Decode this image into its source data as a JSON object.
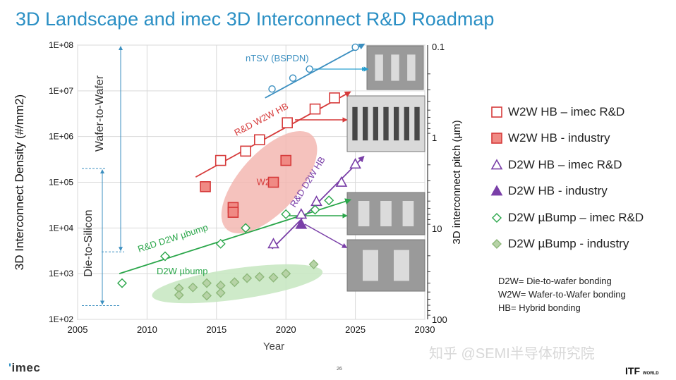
{
  "slide": {
    "title": "3D Landscape and imec 3D Interconnect R&D Roadmap",
    "footer_logo": "imec",
    "page_number": "26",
    "watermark": "知乎 @SEMI半导体研究院",
    "footer_right": "ITF",
    "footer_right_sub": "WORLD"
  },
  "chart_data": {
    "type": "scatter",
    "xlabel": "Year",
    "ylabel": "3D Interconnect Density (#/mm2)",
    "y2label": "3D interconnect pitch (µm)",
    "xlim": [
      2005,
      2030
    ],
    "ylim": [
      100,
      100000000
    ],
    "yscale": "log",
    "x_ticks": [
      "2005",
      "2010",
      "2015",
      "2020",
      "2025",
      "2030"
    ],
    "y_ticks": [
      "1E+02",
      "1E+03",
      "1E+04",
      "1E+05",
      "1E+06",
      "1E+07",
      "1E+08"
    ],
    "y2_ticks": [
      "0.1",
      "1",
      "10",
      "100"
    ],
    "series": [
      {
        "name": "W2W HB – imec R&D",
        "marker": "square-open",
        "color": "#d63a3a",
        "points": [
          [
            2015.3,
            300000
          ],
          [
            2017.1,
            480000
          ],
          [
            2018.1,
            850000
          ],
          [
            2020.1,
            2000000
          ],
          [
            2022.1,
            4000000
          ],
          [
            2023.5,
            7000000
          ]
        ]
      },
      {
        "name": "W2W HB - industry",
        "marker": "square-filled",
        "color": "#d63a3a",
        "points": [
          [
            2014.2,
            80000
          ],
          [
            2016.2,
            28000
          ],
          [
            2016.2,
            22000
          ],
          [
            2019.1,
            100000
          ],
          [
            2020.0,
            300000
          ]
        ]
      },
      {
        "name": "D2W HB – imec R&D",
        "marker": "triangle-open",
        "color": "#7a3fa8",
        "points": [
          [
            2019.1,
            4500
          ],
          [
            2021.1,
            20000
          ],
          [
            2022.2,
            38000
          ],
          [
            2024.0,
            100000
          ],
          [
            2025.0,
            250000
          ]
        ]
      },
      {
        "name": "D2W HB - industry",
        "marker": "triangle-filled",
        "color": "#7a3fa8",
        "points": [
          [
            2021.1,
            12000
          ]
        ]
      },
      {
        "name": "D2W µBump – imec R&D",
        "marker": "diamond-open",
        "color": "#2aa64a",
        "points": [
          [
            2008.2,
            620
          ],
          [
            2011.3,
            2400
          ],
          [
            2015.3,
            4500
          ],
          [
            2017.1,
            10000
          ],
          [
            2020.0,
            20000
          ],
          [
            2022.1,
            25000
          ],
          [
            2023.1,
            40000
          ]
        ]
      },
      {
        "name": "D2W µBump - industry",
        "marker": "diamond-filled",
        "color": "#8db87a",
        "points": [
          [
            2012.3,
            480
          ],
          [
            2012.3,
            340
          ],
          [
            2013.3,
            500
          ],
          [
            2014.3,
            620
          ],
          [
            2014.3,
            330
          ],
          [
            2015.3,
            550
          ],
          [
            2015.3,
            380
          ],
          [
            2016.3,
            650
          ],
          [
            2017.2,
            800
          ],
          [
            2018.1,
            850
          ],
          [
            2019.1,
            820
          ],
          [
            2020.0,
            1000
          ],
          [
            2022.0,
            1600
          ]
        ]
      },
      {
        "name": "nTSV (BSPDN)",
        "marker": "circle-open",
        "color": "#3b8fc0",
        "points": [
          [
            2019.0,
            11000000
          ],
          [
            2020.5,
            19000000
          ],
          [
            2021.7,
            30000000
          ],
          [
            2025.0,
            90000000
          ]
        ]
      }
    ],
    "trend_lines": [
      {
        "label": "R&D W2W HB",
        "color": "#d63a3a",
        "from": [
          2013.5,
          130000
        ],
        "to": [
          2024.5,
          9000000
        ]
      },
      {
        "label": "R&D D2W HB",
        "color": "#7a3fa8",
        "from": [
          2019.0,
          3500
        ],
        "to": [
          2025.5,
          340000
        ]
      },
      {
        "label": "R&D D2W µbump",
        "color": "#2aa64a",
        "from": [
          2008.0,
          1000
        ],
        "to": [
          2024.5,
          40000
        ]
      },
      {
        "label": "nTSV (BSPDN)",
        "color": "#3b8fc0",
        "from": [
          2018.5,
          7000000
        ],
        "to": [
          2025.5,
          100000000
        ]
      }
    ],
    "regions": [
      {
        "label": "W2W",
        "color": "#f3b3ad",
        "center": [
          2018.8,
          100000
        ]
      },
      {
        "label": "D2W µbump",
        "color": "#c6e6bf",
        "center": [
          2016.5,
          600
        ]
      }
    ],
    "arrows": [
      {
        "label": "Wafer-to-Wafer",
        "color": "#3b8fc0",
        "range": [
          3000,
          100000000
        ]
      },
      {
        "label": "Die-to-Silicon",
        "color": "#3b8fc0",
        "range": [
          200,
          200000
        ]
      }
    ],
    "legend_placement": "right"
  },
  "legend": [
    {
      "label": "W2W HB – imec R&D",
      "icon": "square-open-icon",
      "color": "#d63a3a"
    },
    {
      "label": "W2W HB - industry",
      "icon": "square-filled-icon",
      "color": "#d63a3a"
    },
    {
      "label": "D2W HB – imec R&D",
      "icon": "triangle-open-icon",
      "color": "#7a3fa8"
    },
    {
      "label": "D2W HB - industry",
      "icon": "triangle-filled-icon",
      "color": "#7a3fa8"
    },
    {
      "label": "D2W µBump – imec R&D",
      "icon": "diamond-open-icon",
      "color": "#2aa64a"
    },
    {
      "label": "D2W µBump - industry",
      "icon": "diamond-filled-icon",
      "color": "#8db87a"
    }
  ],
  "notes": [
    "D2W= Die-to-wafer bonding",
    "W2W= Wafer-to-Wafer bonding",
    "HB= Hybrid bonding"
  ]
}
